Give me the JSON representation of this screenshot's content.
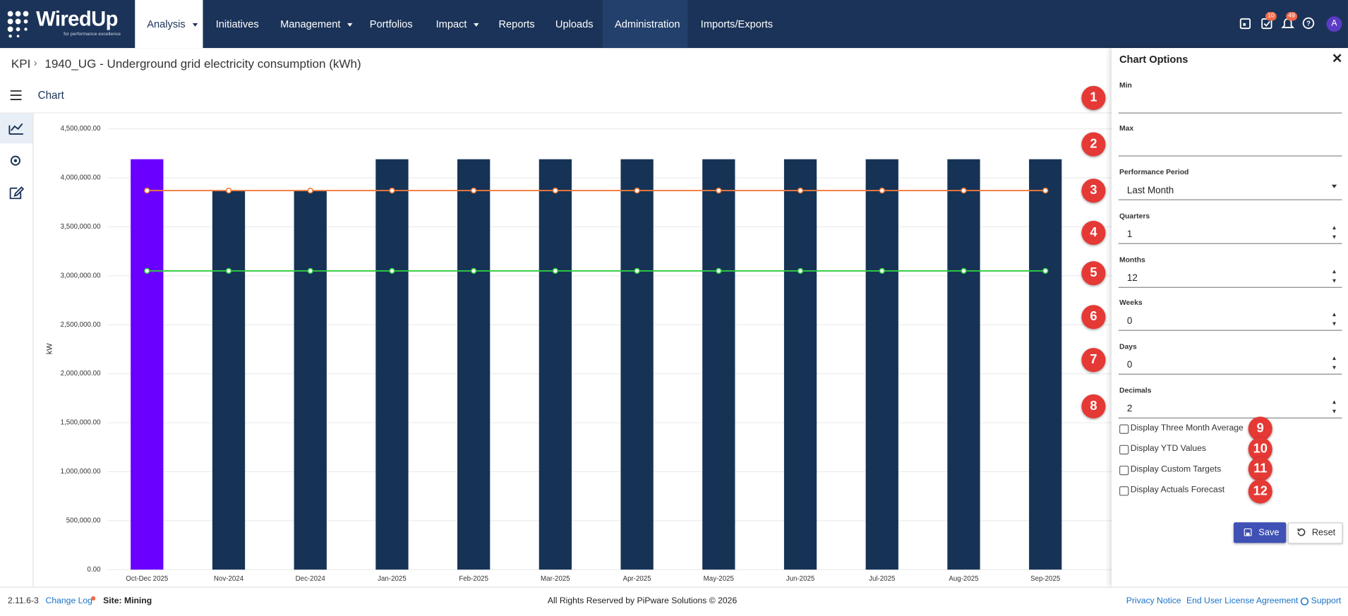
{
  "header": {
    "logo": "WiredUp",
    "tagline": "for performance excellence",
    "nav": [
      "Analysis",
      "Initiatives",
      "Management",
      "Portfolios",
      "Impact",
      "Reports",
      "Uploads",
      "Administration",
      "Imports/Exports"
    ],
    "badges": [
      10,
      49
    ],
    "avatar": "A"
  },
  "breadcrumb": {
    "root": "KPI",
    "page": "1940_UG - Underground grid electricity consumption (kWh)"
  },
  "toolbar": {
    "title": "Chart"
  },
  "chart": {
    "type": "bar",
    "y_label": "kW",
    "categories": [
      "Oct-Dec 2025",
      "Nov-2024",
      "Dec-2024",
      "Jan-2025",
      "Feb-2025",
      "Mar-2025",
      "Apr-2025",
      "May-2025",
      "Jun-2025",
      "Jul-2025",
      "Aug-2025",
      "Sep-2025"
    ],
    "series": [
      {
        "type": "bar",
        "colors": [
          "#6a00ff",
          "#163356",
          "#163356",
          "#163356",
          "#163356",
          "#163356",
          "#163356",
          "#163356",
          "#163356",
          "#163356",
          "#163356",
          "#163356"
        ],
        "values": [
          4190000,
          3870000,
          3870000,
          4190000,
          4190000,
          4190000,
          4190000,
          4190000,
          4190000,
          4190000,
          4190000,
          4190000
        ]
      },
      {
        "type": "line",
        "color": "#f07a3a",
        "values": [
          3870000,
          3870000,
          3870000,
          3870000,
          3870000,
          3870000,
          3870000,
          3870000,
          3870000,
          3870000,
          3870000,
          3870000
        ]
      },
      {
        "type": "line",
        "color": "#2ecc40",
        "values": [
          3050000,
          3050000,
          3050000,
          3050000,
          3050000,
          3050000,
          3050000,
          3050000,
          3050000,
          3050000,
          3050000,
          3050000
        ]
      }
    ],
    "ylim": [
      0,
      4500000
    ],
    "yticks": [
      {
        "value": 0,
        "label": "0.00"
      },
      {
        "value": 500000,
        "label": "500,000.00"
      },
      {
        "value": 1000000,
        "label": "1,000,000.00"
      },
      {
        "value": 1500000,
        "label": "1,500,000.00"
      },
      {
        "value": 2000000,
        "label": "2,000,000.00"
      },
      {
        "value": 2500000,
        "label": "2,500,000.00"
      },
      {
        "value": 3000000,
        "label": "3,000,000.00"
      },
      {
        "value": 3500000,
        "label": "3,500,000.00"
      },
      {
        "value": 4000000,
        "label": "4,000,000.00"
      },
      {
        "value": 4500000,
        "label": "4,500,000.00"
      }
    ],
    "grid": true
  },
  "panel": {
    "title": "Chart Options",
    "fields": [
      {
        "label": "Min"
      },
      {
        "label": "Max"
      },
      {
        "label": "Performance Period",
        "value": "Last Month"
      },
      {
        "label": "Quarters",
        "value": "1"
      },
      {
        "label": "Months",
        "value": "12"
      },
      {
        "label": "Weeks",
        "value": "0"
      },
      {
        "label": "Days",
        "value": "0"
      },
      {
        "label": "Decimals",
        "value": "2"
      }
    ],
    "checkboxes": [
      "Display Three Month Average",
      "Display YTD Values",
      "Display Custom Targets",
      "Display Actuals Forecast"
    ],
    "markers": [
      1,
      2,
      3,
      4,
      5,
      6,
      7,
      8,
      9,
      10,
      11,
      12
    ],
    "save": "Save",
    "reset": "Reset"
  },
  "footer": {
    "version": "2.11.6-3",
    "changelog": "Change Log",
    "site": "Site: Mining",
    "copyright": "All Rights Reserved by PiPware Solutions © 2026",
    "links": [
      "Privacy Notice",
      "End User License Agreement",
      "Support"
    ]
  }
}
